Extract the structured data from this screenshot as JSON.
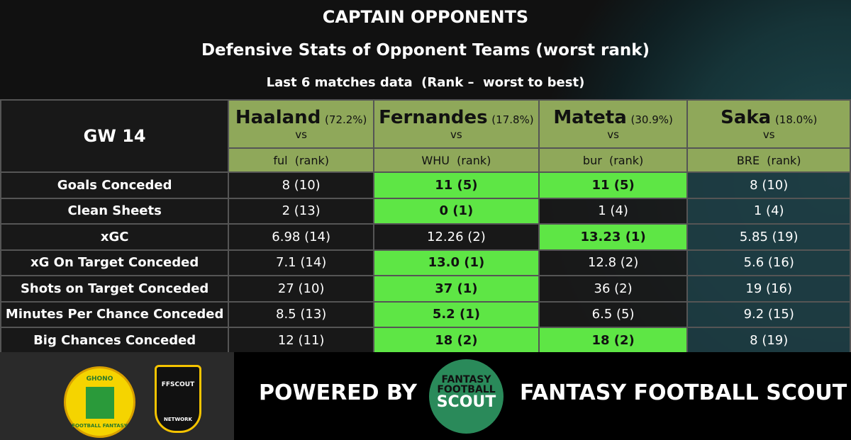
{
  "header": {
    "title": "CAPTAIN OPPONENTS",
    "subtitle": "Defensive Stats of Opponent Teams (worst rank)",
    "note": "Last 6 matches data  (Rank –  worst to best)"
  },
  "table": {
    "corner": "GW 14",
    "columns": [
      {
        "name": "Haaland",
        "share": "(72.2%)",
        "vs": "vs",
        "opponent": "ful",
        "rank": "(rank)"
      },
      {
        "name": "Fernandes",
        "share": "(17.8%)",
        "vs": "vs",
        "opponent": "WHU",
        "rank": "(rank)"
      },
      {
        "name": "Mateta",
        "share": "(30.9%)",
        "vs": "vs",
        "opponent": "bur",
        "rank": "(rank)"
      },
      {
        "name": "Saka",
        "share": "(18.0%)",
        "vs": "vs",
        "opponent": "BRE",
        "rank": "(rank)"
      }
    ],
    "rows": [
      {
        "label": "Goals Conceded",
        "values": [
          "8 (10)",
          "11 (5)",
          "11 (5)",
          "8 (10)"
        ]
      },
      {
        "label": "Clean Sheets",
        "values": [
          "2 (13)",
          "0 (1)",
          "1 (4)",
          "1 (4)"
        ]
      },
      {
        "label": "xGC",
        "values": [
          "6.98 (14)",
          "12.26 (2)",
          "13.23 (1)",
          "5.85 (19)"
        ]
      },
      {
        "label": "xG On Target Conceded",
        "values": [
          "7.1 (14)",
          "13.0 (1)",
          "12.8 (2)",
          "5.6 (16)"
        ]
      },
      {
        "label": "Shots on Target Conceded",
        "values": [
          "27 (10)",
          "37 (1)",
          "36 (2)",
          "19 (16)"
        ]
      },
      {
        "label": "Minutes Per Chance Conceded",
        "values": [
          "8.5 (13)",
          "5.2 (1)",
          "6.5 (5)",
          "9.2 (15)"
        ]
      },
      {
        "label": "Big Chances Conceded",
        "values": [
          "12 (11)",
          "18 (2)",
          "18 (2)",
          "8 (19)"
        ]
      }
    ]
  },
  "footer": {
    "powered": "POWERED BY",
    "brand": "FANTASY FOOTBALL SCOUT",
    "logo_left": {
      "top": "GHONO",
      "bottom": "FOOTBALL FANTASY"
    },
    "logo_mid": {
      "top": "FFSCOUT",
      "bottom": "NETWORK"
    },
    "logo_ffs": [
      "FANTASY",
      "FOOTBALL",
      "SCOUT"
    ]
  }
}
